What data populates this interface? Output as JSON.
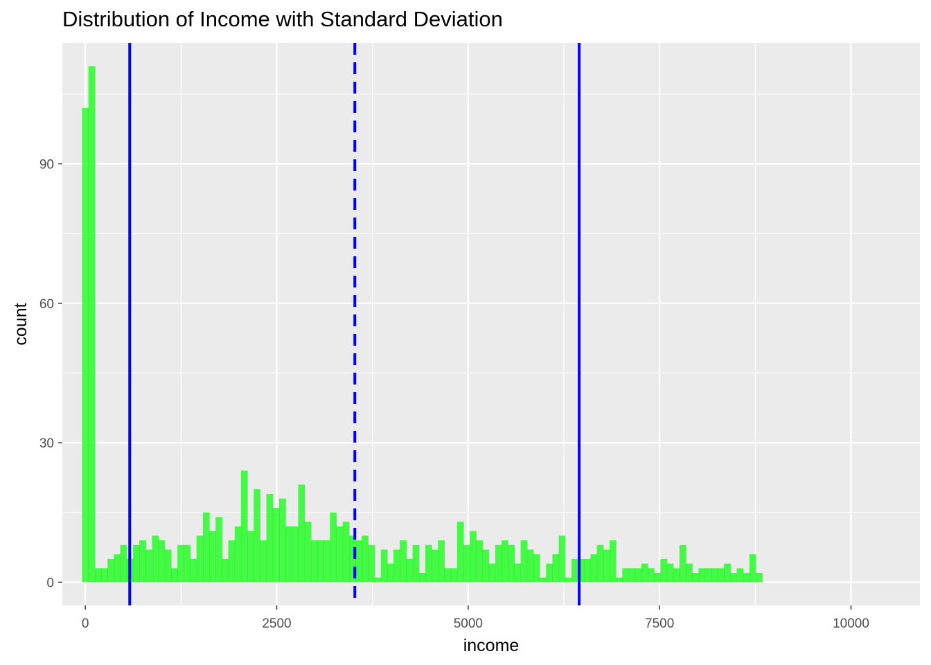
{
  "chart_data": {
    "type": "bar",
    "subtype": "histogram",
    "title": "Distribution of Income with Standard Deviation",
    "xlabel": "income",
    "ylabel": "count",
    "xlim": [
      -300,
      10900
    ],
    "ylim": [
      -5,
      116
    ],
    "x_ticks": [
      0,
      2500,
      5000,
      7500,
      10000
    ],
    "x_tick_labels": [
      "0",
      "2500",
      "5000",
      "7500",
      "10000"
    ],
    "y_ticks": [
      0,
      30,
      60,
      90
    ],
    "y_tick_labels": [
      "0",
      "30",
      "60",
      "90"
    ],
    "grid": true,
    "legend": "none",
    "colors": {
      "bars": "#00FF00",
      "lines": "#0000FF",
      "panel": "#EBEBEB",
      "grid": "#FFFFFF"
    },
    "bin_width": 83,
    "bin_start": -42,
    "counts": [
      102,
      111,
      3,
      3,
      5,
      6,
      8,
      5,
      8,
      9,
      7,
      10,
      9,
      7,
      3,
      8,
      8,
      5,
      10,
      15,
      11,
      14,
      5,
      9,
      12,
      24,
      11,
      20,
      9,
      19,
      16,
      18,
      12,
      12,
      21,
      13,
      9,
      9,
      9,
      15,
      12,
      13,
      10,
      9,
      10,
      8,
      1,
      7,
      4,
      7,
      9,
      5,
      8,
      2,
      8,
      7,
      9,
      3,
      3,
      13,
      8,
      11,
      9,
      7,
      4,
      8,
      9,
      8,
      4,
      9,
      7,
      6,
      1,
      4,
      6,
      10,
      1,
      5,
      5,
      5,
      6,
      8,
      7,
      9,
      1,
      3,
      3,
      3,
      4,
      3,
      2,
      5,
      4,
      3,
      8,
      4,
      2,
      3,
      3,
      3,
      3,
      4,
      2,
      3,
      2,
      6,
      2
    ],
    "vlines": [
      {
        "x": 580,
        "style": "solid"
      },
      {
        "x": 3520,
        "style": "dashed"
      },
      {
        "x": 6450,
        "style": "solid"
      }
    ]
  }
}
